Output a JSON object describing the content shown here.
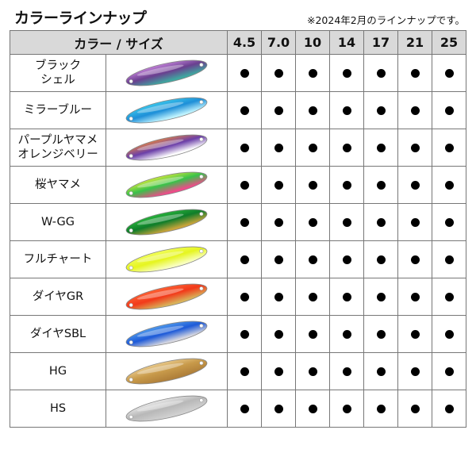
{
  "title": "カラーラインナップ",
  "note": "※2024年2月のラインナップです。",
  "header": {
    "color_size": "カラー / サイズ",
    "sizes": [
      "4.5",
      "7.0",
      "10",
      "14",
      "17",
      "21",
      "25"
    ]
  },
  "rows": [
    {
      "name": "ブラック\nシェル",
      "colors": [
        "#6a3f8f",
        "#d48ee8",
        "#3fa7a0"
      ],
      "available": [
        true,
        true,
        true,
        true,
        true,
        true,
        true
      ]
    },
    {
      "name": "ミラーブルー",
      "colors": [
        "#1e8fd8",
        "#3fd0ee",
        "#bff3ff"
      ],
      "available": [
        true,
        true,
        true,
        true,
        true,
        true,
        true
      ]
    },
    {
      "name": "パープルヤマメ\nオレンジベリー",
      "colors": [
        "#6b3fa8",
        "#f08a3a",
        "#ffffff"
      ],
      "available": [
        true,
        true,
        true,
        true,
        true,
        true,
        true
      ]
    },
    {
      "name": "桜ヤマメ",
      "colors": [
        "#39c24a",
        "#e8ef3a",
        "#f04a8a"
      ],
      "available": [
        true,
        true,
        true,
        true,
        true,
        true,
        true
      ]
    },
    {
      "name": "W-GG",
      "colors": [
        "#0f7d2a",
        "#2dbf3f",
        "#c9a43a"
      ],
      "available": [
        true,
        true,
        true,
        true,
        true,
        true,
        true
      ]
    },
    {
      "name": "フルチャート",
      "colors": [
        "#e6f520",
        "#f3ff6a",
        "#f9ffc0"
      ],
      "available": [
        true,
        true,
        true,
        true,
        true,
        true,
        true
      ]
    },
    {
      "name": "ダイヤGR",
      "colors": [
        "#f23a1a",
        "#ff6a3a",
        "#d8b25a"
      ],
      "available": [
        true,
        true,
        true,
        true,
        true,
        true,
        true
      ]
    },
    {
      "name": "ダイヤSBL",
      "colors": [
        "#1e5ad8",
        "#5aa8f0",
        "#d8d8e0"
      ],
      "available": [
        true,
        true,
        true,
        true,
        true,
        true,
        true
      ]
    },
    {
      "name": "HG",
      "colors": [
        "#c89a4a",
        "#f0d49a",
        "#b0803a"
      ],
      "available": [
        true,
        true,
        true,
        true,
        true,
        true,
        true
      ]
    },
    {
      "name": "HS",
      "colors": [
        "#b8b8b8",
        "#f2f2f2",
        "#d0d0d0"
      ],
      "available": [
        true,
        true,
        true,
        true,
        true,
        true,
        true
      ]
    }
  ]
}
